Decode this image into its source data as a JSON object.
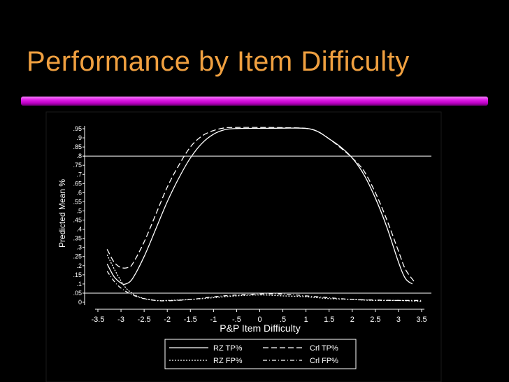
{
  "slide": {
    "title": "Performance by Item Difficulty",
    "accent_color": "#f0a040",
    "bar_color": "#e020e8"
  },
  "chart_data": {
    "type": "line",
    "title": "",
    "xlabel": "P&P Item Difficulty",
    "ylabel": "Predicted Mean %",
    "xlim": [
      -3.5,
      3.5
    ],
    "ylim": [
      0,
      0.95
    ],
    "xticks": [
      "-3.5",
      "-3",
      "-2.5",
      "-2",
      "-1.5",
      "-1",
      "-.5",
      "0",
      ".5",
      "1",
      "1.5",
      "2",
      "2.5",
      "3",
      "3.5"
    ],
    "yticks": [
      "0",
      ".05",
      ".1",
      ".15",
      ".2",
      ".25",
      ".3",
      ".35",
      ".4",
      ".45",
      ".5",
      ".55",
      ".6",
      ".65",
      ".7",
      ".75",
      ".8",
      ".85",
      ".9",
      ".95"
    ],
    "reference_lines": [
      0.8,
      0.05
    ],
    "grid": false,
    "legend_position": "bottom",
    "series": [
      {
        "name": "RZ TP%",
        "style": "solid",
        "x": [
          -3.3,
          -3.15,
          -3.0,
          -2.9,
          -2.75,
          -2.5,
          -2.25,
          -2.0,
          -1.75,
          -1.5,
          -1.25,
          -1.0,
          -0.75,
          -0.5,
          0.0,
          0.5,
          1.0,
          1.25,
          1.5,
          1.75,
          2.0,
          2.25,
          2.5,
          2.75,
          3.0,
          3.15,
          3.3
        ],
        "y": [
          0.21,
          0.14,
          0.105,
          0.1,
          0.13,
          0.25,
          0.4,
          0.55,
          0.68,
          0.79,
          0.87,
          0.92,
          0.945,
          0.951,
          0.952,
          0.953,
          0.952,
          0.935,
          0.895,
          0.85,
          0.79,
          0.7,
          0.57,
          0.41,
          0.22,
          0.13,
          0.1
        ]
      },
      {
        "name": "Crl TP%",
        "style": "dashed",
        "x": [
          -3.3,
          -3.15,
          -3.0,
          -2.85,
          -2.75,
          -2.5,
          -2.25,
          -2.0,
          -1.75,
          -1.5,
          -1.25,
          -1.0,
          -0.75,
          -0.5,
          0.0,
          0.5,
          1.0,
          1.25,
          1.5,
          1.75,
          2.0,
          2.25,
          2.5,
          2.75,
          3.0,
          3.15,
          3.35
        ],
        "y": [
          0.29,
          0.22,
          0.19,
          0.19,
          0.21,
          0.33,
          0.48,
          0.63,
          0.75,
          0.85,
          0.91,
          0.94,
          0.955,
          0.957,
          0.957,
          0.956,
          0.952,
          0.935,
          0.895,
          0.845,
          0.79,
          0.72,
          0.6,
          0.45,
          0.28,
          0.18,
          0.11
        ]
      },
      {
        "name": "RZ FP%",
        "style": "dotted",
        "x": [
          -3.3,
          -3.1,
          -2.9,
          -2.7,
          -2.5,
          -2.25,
          -2.0,
          -1.5,
          -1.0,
          -0.5,
          0.0,
          0.5,
          1.0,
          1.5,
          2.0,
          2.5,
          3.0,
          3.5
        ],
        "y": [
          0.26,
          0.16,
          0.08,
          0.04,
          0.02,
          0.01,
          0.01,
          0.015,
          0.025,
          0.035,
          0.04,
          0.035,
          0.03,
          0.02,
          0.015,
          0.01,
          0.01,
          0.005
        ]
      },
      {
        "name": "Crl FP%",
        "style": "dash-dot",
        "x": [
          -3.3,
          -3.1,
          -2.9,
          -2.7,
          -2.5,
          -2.25,
          -2.0,
          -1.5,
          -1.0,
          -0.5,
          0.0,
          0.5,
          1.0,
          1.5,
          2.0,
          2.5,
          3.0,
          3.5
        ],
        "y": [
          0.17,
          0.1,
          0.06,
          0.035,
          0.02,
          0.01,
          0.008,
          0.015,
          0.03,
          0.04,
          0.045,
          0.045,
          0.035,
          0.025,
          0.015,
          0.012,
          0.01,
          0.01
        ]
      }
    ]
  }
}
